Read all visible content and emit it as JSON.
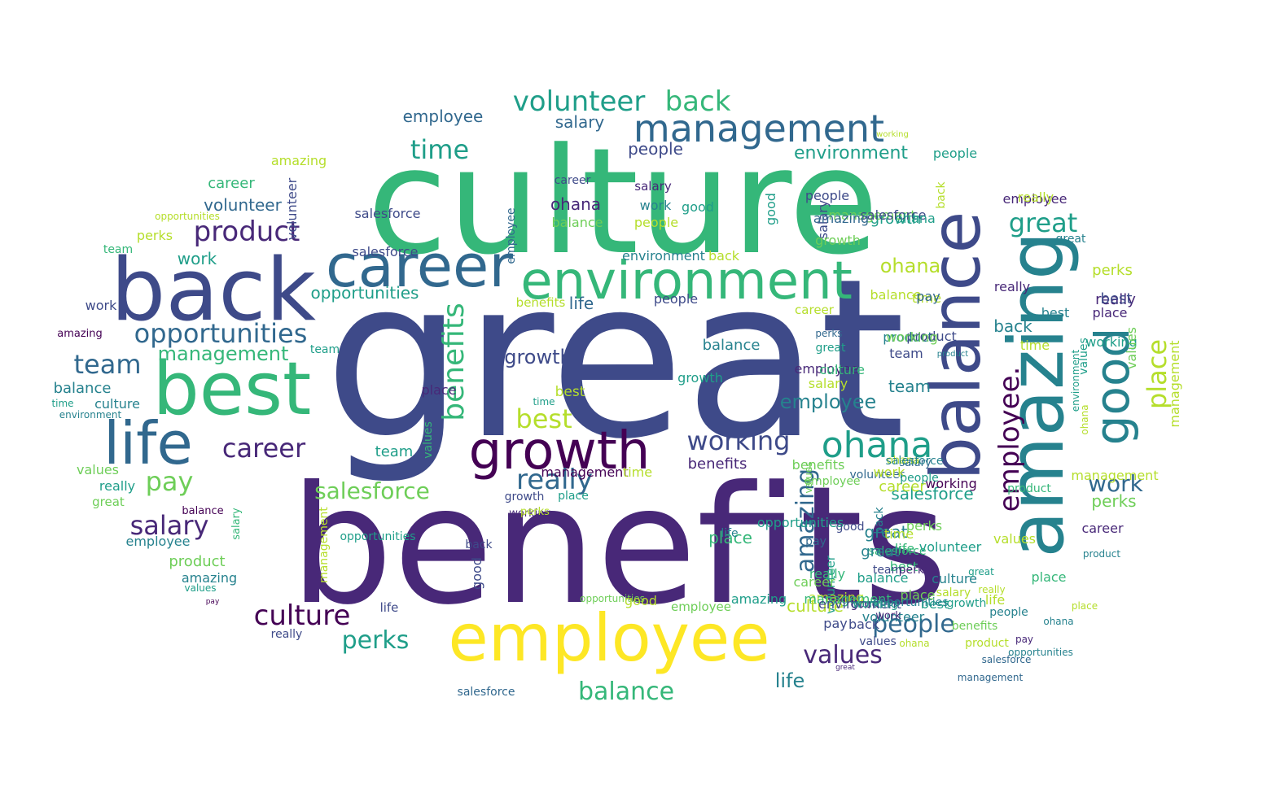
{
  "palette": {
    "c1": "#440154",
    "c2": "#482878",
    "c3": "#3e4a89",
    "c4": "#31688e",
    "c5": "#26828e",
    "c6": "#1f9e89",
    "c7": "#35b779",
    "c8": "#6ece58",
    "c9": "#b5de2b",
    "c10": "#fde725"
  },
  "words": [
    {
      "text": "great",
      "color": "c3"
    },
    {
      "text": "benefits",
      "color": "c2"
    },
    {
      "text": "culture",
      "color": "c7"
    },
    {
      "text": "employee",
      "color": "c10"
    },
    {
      "text": "balance",
      "color": "c3"
    },
    {
      "text": "amazing",
      "color": "c5"
    },
    {
      "text": "back",
      "color": "c3"
    },
    {
      "text": "best",
      "color": "c7"
    },
    {
      "text": "career",
      "color": "c4"
    },
    {
      "text": "environment",
      "color": "c7"
    },
    {
      "text": "management",
      "color": "c4"
    },
    {
      "text": "growth",
      "color": "c1"
    },
    {
      "text": "life",
      "color": "c4"
    },
    {
      "text": "good",
      "color": "c5"
    },
    {
      "text": "ohana",
      "color": "c6"
    },
    {
      "text": "volunteer",
      "color": "c6"
    },
    {
      "text": "back",
      "color": "c7"
    },
    {
      "text": "employee.",
      "color": "c1"
    },
    {
      "text": "product",
      "color": "c2"
    },
    {
      "text": "opportunities",
      "color": "c4"
    },
    {
      "text": "time",
      "color": "c6"
    },
    {
      "text": "great",
      "color": "c6"
    },
    {
      "text": "benefits",
      "color": "c7"
    },
    {
      "text": "place",
      "color": "c9"
    },
    {
      "text": "working",
      "color": "c3"
    },
    {
      "text": "salesforce",
      "color": "c8"
    },
    {
      "text": "career",
      "color": "c2"
    },
    {
      "text": "best",
      "color": "c9"
    },
    {
      "text": "amazing",
      "color": "c4"
    },
    {
      "text": "really",
      "color": "c4"
    },
    {
      "text": "culture",
      "color": "c1"
    },
    {
      "text": "team",
      "color": "c4"
    },
    {
      "text": "salary",
      "color": "c2"
    },
    {
      "text": "pay",
      "color": "c8"
    },
    {
      "text": "values",
      "color": "c2"
    },
    {
      "text": "people",
      "color": "c4"
    },
    {
      "text": "perks",
      "color": "c6"
    },
    {
      "text": "balance",
      "color": "c7"
    },
    {
      "text": "management",
      "color": "c7"
    },
    {
      "text": "work",
      "color": "c4"
    },
    {
      "text": "ohana",
      "color": "c9"
    },
    {
      "text": "life",
      "color": "c5"
    },
    {
      "text": "environment",
      "color": "c6"
    },
    {
      "text": "people",
      "color": "c6"
    },
    {
      "text": "employee",
      "color": "c4"
    },
    {
      "text": "salary",
      "color": "c4"
    },
    {
      "text": "working",
      "color": "c6"
    },
    {
      "text": "salesforce",
      "color": "c3"
    },
    {
      "text": "growth",
      "color": "c3"
    },
    {
      "text": "place",
      "color": "c7"
    },
    {
      "text": "growth",
      "color": "c6"
    },
    {
      "text": "benefits",
      "color": "c2"
    },
    {
      "text": "volunteer",
      "color": "c4"
    },
    {
      "text": "best",
      "color": "c5"
    },
    {
      "text": "values",
      "color": "c8"
    },
    {
      "text": "time",
      "color": "c9"
    },
    {
      "text": "salesforce",
      "color": "c6"
    },
    {
      "text": "great",
      "color": "c5"
    },
    {
      "text": "really",
      "color": "c2"
    },
    {
      "text": "perks",
      "color": "c8"
    },
    {
      "text": "product",
      "color": "c5"
    },
    {
      "text": "people",
      "color": "c3"
    },
    {
      "text": "team",
      "color": "c5"
    },
    {
      "text": "balance",
      "color": "c5"
    },
    {
      "text": "life",
      "color": "c4"
    },
    {
      "text": "opportunities",
      "color": "c6"
    },
    {
      "text": "ohana",
      "color": "c2"
    },
    {
      "text": "career",
      "color": "c7"
    },
    {
      "text": "work",
      "color": "c6"
    },
    {
      "text": "employee",
      "color": "c2"
    },
    {
      "text": "benefits",
      "color": "c9"
    },
    {
      "text": "amazing",
      "color": "c9"
    },
    {
      "text": "salesforce",
      "color": "c3"
    },
    {
      "text": "opportunities",
      "color": "c9"
    },
    {
      "text": "volunteer",
      "color": "c3"
    },
    {
      "text": "management",
      "color": "c9"
    },
    {
      "text": "perks",
      "color": "c9"
    },
    {
      "text": "values",
      "color": "c6"
    },
    {
      "text": "product",
      "color": "c3"
    },
    {
      "text": "team",
      "color": "c7"
    },
    {
      "text": "work",
      "color": "c3"
    },
    {
      "text": "amazing",
      "color": "c1"
    },
    {
      "text": "time",
      "color": "c6"
    },
    {
      "text": "environment",
      "color": "c5"
    },
    {
      "text": "team",
      "color": "c6"
    },
    {
      "text": "culture",
      "color": "c5"
    },
    {
      "text": "balance",
      "color": "c5"
    },
    {
      "text": "values",
      "color": "c8"
    },
    {
      "text": "really",
      "color": "c6"
    },
    {
      "text": "great",
      "color": "c8"
    },
    {
      "text": "balance",
      "color": "c1"
    },
    {
      "text": "salary",
      "color": "c7"
    },
    {
      "text": "employee",
      "color": "c5"
    },
    {
      "text": "product",
      "color": "c8"
    },
    {
      "text": "amazing",
      "color": "c5"
    },
    {
      "text": "values",
      "color": "c6"
    },
    {
      "text": "pay",
      "color": "c1"
    },
    {
      "text": "management",
      "color": "c9"
    },
    {
      "text": "opportunities",
      "color": "c6"
    },
    {
      "text": "life",
      "color": "c3"
    },
    {
      "text": "really",
      "color": "c3"
    },
    {
      "text": "good",
      "color": "c3"
    },
    {
      "text": "back",
      "color": "c3"
    },
    {
      "text": "best",
      "color": "c9"
    },
    {
      "text": "time",
      "color": "c6"
    },
    {
      "text": "growth",
      "color": "c3"
    },
    {
      "text": "working",
      "color": "c2"
    },
    {
      "text": "people",
      "color": "c3"
    },
    {
      "text": "back",
      "color": "c9"
    },
    {
      "text": "environment",
      "color": "c5"
    },
    {
      "text": "salesforce",
      "color": "c4"
    },
    {
      "text": "employee",
      "color": "c8"
    },
    {
      "text": "volunteer",
      "color": "c6"
    },
    {
      "text": "opportunities",
      "color": "c8"
    },
    {
      "text": "good",
      "color": "c9"
    },
    {
      "text": "people",
      "color": "c9"
    },
    {
      "text": "balance",
      "color": "c8"
    },
    {
      "text": "career",
      "color": "c8"
    },
    {
      "text": "salary",
      "color": "c4"
    },
    {
      "text": "employee",
      "color": "c4"
    },
    {
      "text": "balance",
      "color": "c9"
    },
    {
      "text": "career",
      "color": "c3"
    },
    {
      "text": "management",
      "color": "c1"
    },
    {
      "text": "time",
      "color": "c9"
    },
    {
      "text": "values",
      "color": "c8"
    },
    {
      "text": "volunteer",
      "color": "c4"
    },
    {
      "text": "place",
      "color": "c6"
    },
    {
      "text": "great",
      "color": "c6"
    },
    {
      "text": "salary",
      "color": "c2"
    },
    {
      "text": "work",
      "color": "c5"
    },
    {
      "text": "good",
      "color": "c6"
    },
    {
      "text": "career",
      "color": "c9"
    },
    {
      "text": "ohana",
      "color": "c9"
    },
    {
      "text": "salary",
      "color": "c3"
    },
    {
      "text": "management",
      "color": "c8"
    },
    {
      "text": "salesforce",
      "color": "c3"
    },
    {
      "text": "work",
      "color": "c9"
    },
    {
      "text": "perks",
      "color": "c9"
    },
    {
      "text": "back",
      "color": "c9"
    },
    {
      "text": "people",
      "color": "c3"
    },
    {
      "text": "amazing",
      "color": "c4"
    },
    {
      "text": "ohana",
      "color": "c6"
    },
    {
      "text": "growth",
      "color": "c8"
    },
    {
      "text": "really",
      "color": "c9"
    },
    {
      "text": "employee",
      "color": "c2"
    },
    {
      "text": "great",
      "color": "c5"
    },
    {
      "text": "working",
      "color": "c9"
    },
    {
      "text": "perks",
      "color": "c9"
    },
    {
      "text": "place",
      "color": "c2"
    },
    {
      "text": "best",
      "color": "c3"
    },
    {
      "text": "really",
      "color": "c2"
    },
    {
      "text": "back",
      "color": "c5"
    },
    {
      "text": "pay",
      "color": "c4"
    },
    {
      "text": "time",
      "color": "c9"
    },
    {
      "text": "working",
      "color": "c8"
    },
    {
      "text": "product",
      "color": "c5"
    },
    {
      "text": "team",
      "color": "c3"
    },
    {
      "text": "salary",
      "color": "c9"
    },
    {
      "text": "culture",
      "color": "c7"
    },
    {
      "text": "perks",
      "color": "c4"
    },
    {
      "text": "good",
      "color": "c6"
    },
    {
      "text": "employee",
      "color": "c5"
    },
    {
      "text": "values",
      "color": "c9"
    },
    {
      "text": "environment",
      "color": "c6"
    },
    {
      "text": "ohana",
      "color": "c9"
    },
    {
      "text": "management",
      "color": "c9"
    },
    {
      "text": "career",
      "color": "c2"
    },
    {
      "text": "product",
      "color": "c5"
    },
    {
      "text": "place",
      "color": "c7"
    },
    {
      "text": "salesforce",
      "color": "c7"
    },
    {
      "text": "amazing",
      "color": "c9"
    },
    {
      "text": "good",
      "color": "c2"
    },
    {
      "text": "great",
      "color": "c5"
    },
    {
      "text": "balance",
      "color": "c6"
    },
    {
      "text": "life",
      "color": "c9"
    },
    {
      "text": "culture",
      "color": "c9"
    },
    {
      "text": "back",
      "color": "c3"
    },
    {
      "text": "pay",
      "color": "c3"
    },
    {
      "text": "ohana",
      "color": "c9"
    },
    {
      "text": "great",
      "color": "c2"
    },
    {
      "text": "best",
      "color": "c7"
    },
    {
      "text": "time",
      "color": "c9"
    },
    {
      "text": "life",
      "color": "c7"
    },
    {
      "text": "perks",
      "color": "c8"
    },
    {
      "text": "career",
      "color": "c9"
    },
    {
      "text": "working",
      "color": "c1"
    },
    {
      "text": "volunteer",
      "color": "c6"
    },
    {
      "text": "product",
      "color": "c7"
    },
    {
      "text": "people",
      "color": "c6"
    },
    {
      "text": "place",
      "color": "c2"
    },
    {
      "text": "team",
      "color": "c6"
    },
    {
      "text": "values",
      "color": "c7"
    },
    {
      "text": "growth",
      "color": "c6"
    },
    {
      "text": "benefits",
      "color": "c8"
    },
    {
      "text": "salesforce",
      "color": "c5"
    },
    {
      "text": "employee",
      "color": "c8"
    },
    {
      "text": "opportunities",
      "color": "c6"
    },
    {
      "text": "management",
      "color": "c7"
    },
    {
      "text": "environment",
      "color": "c3"
    },
    {
      "text": "really",
      "color": "c7"
    },
    {
      "text": "life",
      "color": "c5"
    },
    {
      "text": "amazing",
      "color": "c6"
    },
    {
      "text": "pay",
      "color": "c4"
    },
    {
      "text": "good",
      "color": "c3"
    },
    {
      "text": "back",
      "color": "c5"
    },
    {
      "text": "culture",
      "color": "c5"
    },
    {
      "text": "place",
      "color": "c8"
    },
    {
      "text": "volunteer",
      "color": "c5"
    },
    {
      "text": "work",
      "color": "c2"
    },
    {
      "text": "best",
      "color": "c6"
    },
    {
      "text": "salary",
      "color": "c9"
    },
    {
      "text": "perks",
      "color": "c2"
    },
    {
      "text": "values",
      "color": "c3"
    },
    {
      "text": "working",
      "color": "c6"
    },
    {
      "text": "team",
      "color": "c3"
    },
    {
      "text": "opportunities",
      "color": "c5"
    },
    {
      "text": "growth",
      "color": "c6"
    },
    {
      "text": "great",
      "color": "c6"
    },
    {
      "text": "really",
      "color": "c9"
    },
    {
      "text": "people",
      "color": "c5"
    },
    {
      "text": "benefits",
      "color": "c8"
    },
    {
      "text": "product",
      "color": "c9"
    },
    {
      "text": "pay",
      "color": "c2"
    },
    {
      "text": "ohana",
      "color": "c5"
    },
    {
      "text": "salesforce",
      "color": "c4"
    },
    {
      "text": "management",
      "color": "c4"
    },
    {
      "text": "opportunities",
      "color": "c5"
    },
    {
      "text": "place",
      "color": "c9"
    },
    {
      "text": "employee",
      "color": "c5"
    },
    {
      "text": "team",
      "color": "c5"
    },
    {
      "text": "life",
      "color": "c5"
    },
    {
      "text": "good",
      "color": "c9"
    },
    {
      "text": "working",
      "color": "c2"
    },
    {
      "text": "time",
      "color": "c9"
    },
    {
      "text": "volunteer",
      "color": "c7"
    },
    {
      "text": "salesforce",
      "color": "c3"
    },
    {
      "text": "perks",
      "color": "c7"
    }
  ]
}
